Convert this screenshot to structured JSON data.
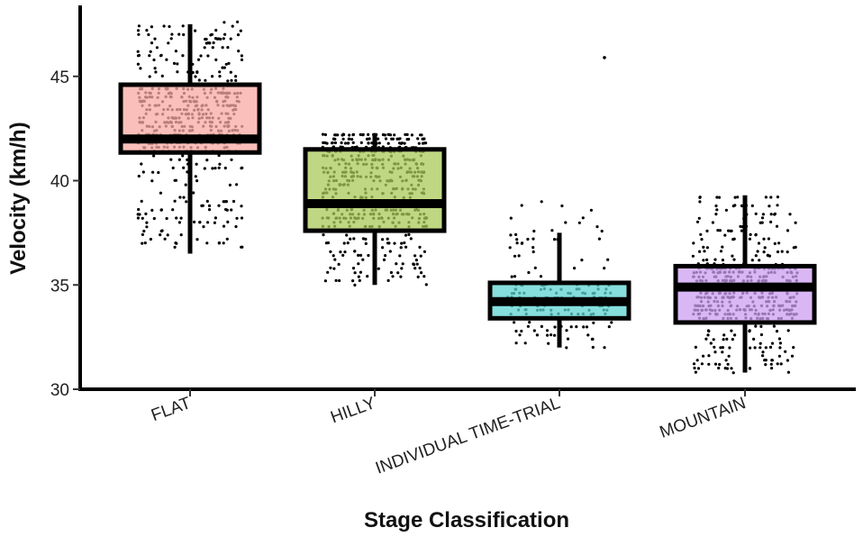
{
  "chart_data": {
    "type": "box",
    "xlabel": "Stage Classification",
    "ylabel": "Velocity (km/h)",
    "ylim": [
      30,
      48.4
    ],
    "yticks": [
      30,
      35,
      40,
      45
    ],
    "grid": false,
    "legend": "none",
    "boxes": [
      {
        "category": "FLAT",
        "color": "#f8a9a3",
        "whisker_low": 36.5,
        "q1": 41.35,
        "median": 42.0,
        "q3": 44.6,
        "whisker_high": 47.5,
        "jitter_range": [
          36.8,
          47.6
        ]
      },
      {
        "category": "HILLY",
        "color": "#a9c95a",
        "whisker_low": 35.0,
        "q1": 37.6,
        "median": 38.9,
        "q3": 41.5,
        "whisker_high": 42.2,
        "jitter_range": [
          35.0,
          42.3
        ]
      },
      {
        "category": "INDIVIDUAL TIME-TRIAL",
        "color": "#5fd4d2",
        "whisker_low": 32.0,
        "q1": 33.4,
        "median": 34.2,
        "q3": 35.1,
        "whisker_high": 37.5,
        "jitter_range": [
          32.0,
          39.0
        ],
        "outliers": [
          45.9
        ]
      },
      {
        "category": "MOUNTAIN",
        "color": "#cc9ff2",
        "whisker_low": 30.8,
        "q1": 33.2,
        "median": 34.9,
        "q3": 35.9,
        "whisker_high": 39.3,
        "jitter_range": [
          30.8,
          39.3
        ]
      }
    ]
  }
}
